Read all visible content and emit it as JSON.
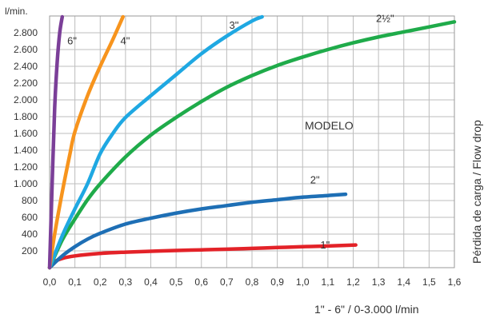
{
  "chart_data": {
    "type": "line",
    "y_unit_label": "l/min.",
    "xlabel": "1\" - 6\" / 0-3.000 l/min",
    "ylabel": "Pérdida de carga / Flow drop",
    "annotation": "MODELO",
    "xlim": [
      0,
      1.6
    ],
    "ylim": [
      0,
      3000
    ],
    "x_ticks": [
      "0,0",
      "0,1",
      "0,2",
      "0,3",
      "0,4",
      "0,5",
      "0,6",
      "0,7",
      "0,8",
      "0,9",
      "1,0",
      "1,1",
      "1,2",
      "1,3",
      "1,4",
      "1,5",
      "1,6"
    ],
    "y_ticks": [
      "200",
      "400",
      "600",
      "800",
      "1.000",
      "1.200",
      "1.400",
      "1.600",
      "1.800",
      "2.000",
      "2.200",
      "2.400",
      "2.600",
      "2.800"
    ],
    "grid": true,
    "series": [
      {
        "name": "1\"",
        "color": "#e32228",
        "x": [
          0,
          0.02,
          0.05,
          0.1,
          0.2,
          0.3,
          0.4,
          0.5,
          0.6,
          0.7,
          0.8,
          0.9,
          1.0,
          1.1,
          1.21
        ],
        "y": [
          0,
          70,
          110,
          140,
          170,
          185,
          195,
          205,
          212,
          220,
          230,
          240,
          250,
          258,
          270
        ]
      },
      {
        "name": "2\"",
        "color": "#1e6fb5",
        "x": [
          0,
          0.05,
          0.1,
          0.15,
          0.2,
          0.3,
          0.4,
          0.5,
          0.6,
          0.7,
          0.8,
          0.9,
          1.0,
          1.1,
          1.17
        ],
        "y": [
          0,
          140,
          250,
          340,
          410,
          520,
          590,
          650,
          700,
          740,
          780,
          810,
          840,
          860,
          875
        ]
      },
      {
        "name": "2½\"",
        "color": "#1fab4a",
        "x": [
          0,
          0.05,
          0.1,
          0.15,
          0.2,
          0.3,
          0.4,
          0.5,
          0.6,
          0.7,
          0.8,
          0.9,
          1.0,
          1.1,
          1.2,
          1.3,
          1.4,
          1.5,
          1.6
        ],
        "y": [
          0,
          330,
          580,
          810,
          1000,
          1320,
          1580,
          1790,
          1980,
          2150,
          2290,
          2410,
          2510,
          2600,
          2680,
          2750,
          2810,
          2870,
          2930
        ]
      },
      {
        "name": "3\"",
        "color": "#1fa8e2",
        "x": [
          0,
          0.05,
          0.1,
          0.15,
          0.2,
          0.25,
          0.3,
          0.4,
          0.5,
          0.6,
          0.7,
          0.8,
          0.84
        ],
        "y": [
          0,
          380,
          700,
          1000,
          1360,
          1600,
          1790,
          2050,
          2300,
          2550,
          2760,
          2940,
          2990
        ]
      },
      {
        "name": "4\"",
        "color": "#f7941d",
        "x": [
          0,
          0.02,
          0.05,
          0.08,
          0.1,
          0.15,
          0.2,
          0.25,
          0.29
        ],
        "y": [
          0,
          400,
          900,
          1350,
          1620,
          2050,
          2400,
          2720,
          2990
        ]
      },
      {
        "name": "6\"",
        "color": "#7b3f98",
        "x": [
          0,
          0.01,
          0.02,
          0.03,
          0.04,
          0.05
        ],
        "y": [
          0,
          1000,
          1900,
          2450,
          2800,
          2990
        ]
      }
    ]
  }
}
